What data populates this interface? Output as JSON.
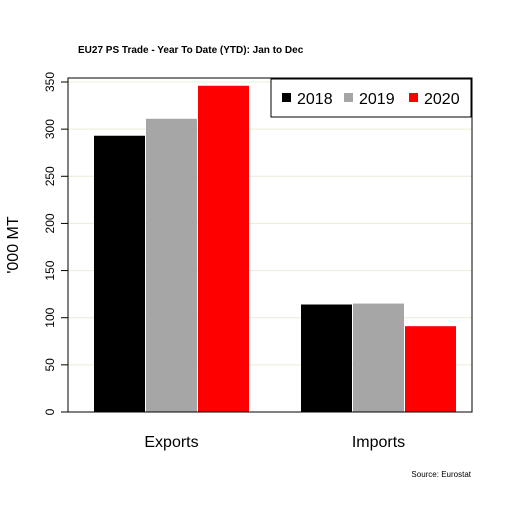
{
  "chart_data": {
    "type": "bar",
    "title": "EU27 PS  Trade - Year To Date (YTD): Jan to Dec",
    "xlabel": "",
    "ylabel": "'000 MT",
    "categories": [
      "Exports",
      "Imports"
    ],
    "series": [
      {
        "name": "2018",
        "values": [
          293,
          114
        ],
        "color": "#000000"
      },
      {
        "name": "2019",
        "values": [
          311,
          115
        ],
        "color": "#a6a6a6"
      },
      {
        "name": "2020",
        "values": [
          346,
          91
        ],
        "color": "#ff0000"
      }
    ],
    "ylim": [
      0,
      350
    ],
    "yticks": [
      0,
      50,
      100,
      150,
      200,
      250,
      300,
      350
    ],
    "grid": true,
    "grid_color": "#ececd8",
    "legend_position": "top-right",
    "source": "Source: Eurostat"
  }
}
